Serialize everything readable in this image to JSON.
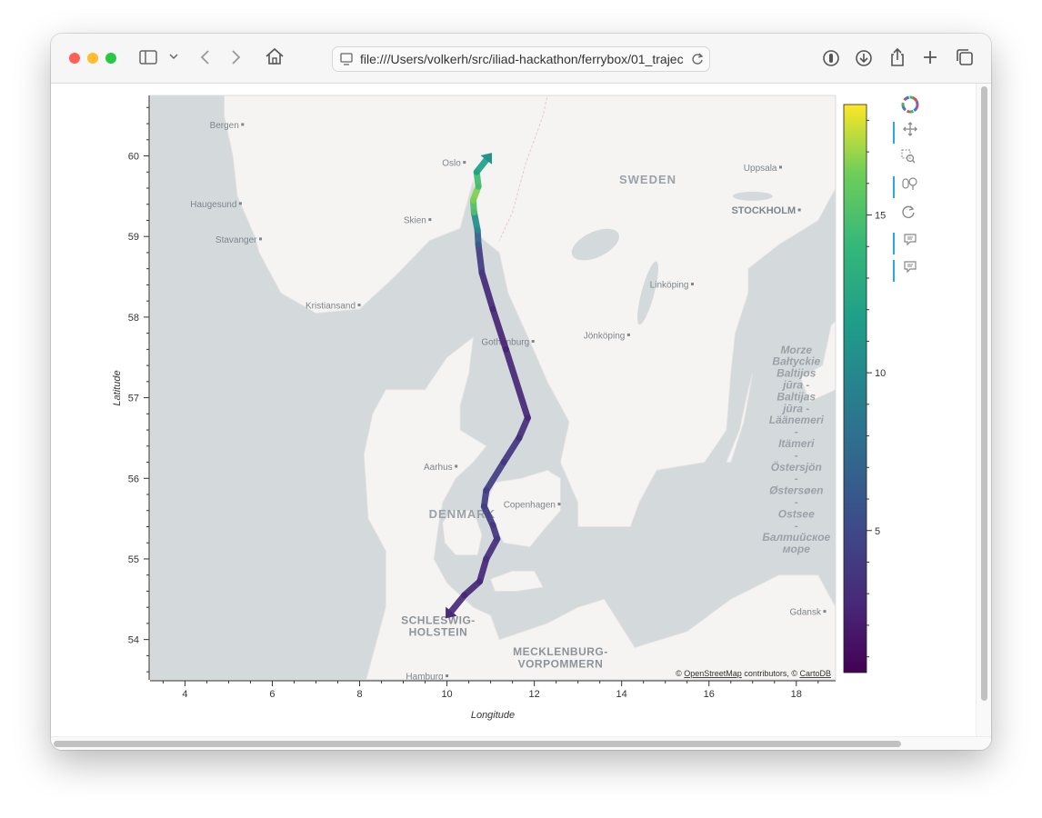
{
  "browser": {
    "url": "file:///Users/volkerh/src/iliad-hackathon/ferrybox/01_trajec",
    "colors": {
      "close": "#fe5f57",
      "minimize": "#febc2e",
      "zoom": "#28c840"
    }
  },
  "map": {
    "attribution_prefix": "© ",
    "attribution_osm": "OpenStreetMap",
    "attribution_mid": " contributors, © ",
    "attribution_carto": "CartoDB",
    "places": [
      {
        "name": "Bergen",
        "lon": 5.32,
        "lat": 60.39,
        "type": "city"
      },
      {
        "name": "Haugesund",
        "lon": 5.27,
        "lat": 59.41,
        "type": "city"
      },
      {
        "name": "Stavanger",
        "lon": 5.73,
        "lat": 58.97,
        "type": "city"
      },
      {
        "name": "Kristiansand",
        "lon": 7.99,
        "lat": 58.15,
        "type": "city"
      },
      {
        "name": "Skien",
        "lon": 9.61,
        "lat": 59.21,
        "type": "city"
      },
      {
        "name": "Oslo",
        "lon": 10.4,
        "lat": 59.92,
        "type": "city"
      },
      {
        "name": "Gothenburg",
        "lon": 11.97,
        "lat": 57.7,
        "type": "city"
      },
      {
        "name": "Jönköping",
        "lon": 14.16,
        "lat": 57.78,
        "type": "city"
      },
      {
        "name": "Linköping",
        "lon": 15.62,
        "lat": 58.41,
        "type": "city"
      },
      {
        "name": "Uppsala",
        "lon": 17.64,
        "lat": 59.86,
        "type": "city"
      },
      {
        "name": "Aarhus",
        "lon": 10.21,
        "lat": 56.15,
        "type": "city"
      },
      {
        "name": "Copenhagen",
        "lon": 12.57,
        "lat": 55.68,
        "type": "city"
      },
      {
        "name": "Gdansk",
        "lon": 18.65,
        "lat": 54.35,
        "type": "city"
      },
      {
        "name": "Hamburg",
        "lon": 10.0,
        "lat": 53.55,
        "type": "city"
      },
      {
        "name": "STOCKHOLM",
        "lon": 18.07,
        "lat": 59.33,
        "type": "capital"
      },
      {
        "name": "SWEDEN",
        "lon": 14.6,
        "lat": 59.7,
        "type": "country"
      },
      {
        "name": "DENMARK",
        "lon": 10.35,
        "lat": 55.55,
        "type": "country"
      },
      {
        "name": "SCHLESWIG-",
        "lon": 9.8,
        "lat": 54.24,
        "type": "region"
      },
      {
        "name": "HOLSTEIN",
        "lon": 9.8,
        "lat": 54.09,
        "type": "region"
      },
      {
        "name": "MECKLENBURG-",
        "lon": 12.6,
        "lat": 53.85,
        "type": "region"
      },
      {
        "name": "VORPOMMERN",
        "lon": 12.6,
        "lat": 53.7,
        "type": "region"
      }
    ],
    "sea_labels": [
      "Morze",
      "Bałtyckie",
      "Baltijos",
      "jūra -",
      "Baltijas",
      "jūra -",
      "Läänemeri",
      "-",
      "Itämeri",
      "-",
      "Östersjön",
      "-",
      "Østersøen",
      "-",
      "Ostsee",
      "-",
      "Балтийское",
      "море"
    ]
  },
  "chart_data": {
    "type": "line",
    "title": "",
    "xlabel": "Longitude",
    "ylabel": "Latitude",
    "xlim": [
      3.2,
      18.9
    ],
    "ylim": [
      53.5,
      60.75
    ],
    "xticks": [
      4,
      6,
      8,
      10,
      12,
      14,
      16,
      18
    ],
    "yticks": [
      54,
      55,
      56,
      57,
      58,
      59,
      60
    ],
    "colorbar": {
      "colormap": "viridis",
      "range": [
        0.5,
        18.5
      ],
      "ticks": [
        5,
        10,
        15
      ]
    },
    "series": [
      {
        "values": [
          {
            "lon": 10.1,
            "lat": 54.35,
            "c": 3.0
          },
          {
            "lon": 10.4,
            "lat": 54.55,
            "c": 3.0
          },
          {
            "lon": 10.75,
            "lat": 54.72,
            "c": 2.5
          },
          {
            "lon": 10.9,
            "lat": 55.0,
            "c": 3.0
          },
          {
            "lon": 11.15,
            "lat": 55.25,
            "c": 3.5
          },
          {
            "lon": 11.05,
            "lat": 55.42,
            "c": 4.0
          },
          {
            "lon": 10.85,
            "lat": 55.65,
            "c": 4.0
          },
          {
            "lon": 10.9,
            "lat": 55.85,
            "c": 4.5
          },
          {
            "lon": 11.3,
            "lat": 56.2,
            "c": 4.0
          },
          {
            "lon": 11.65,
            "lat": 56.5,
            "c": 3.5
          },
          {
            "lon": 11.85,
            "lat": 56.75,
            "c": 3.0
          },
          {
            "lon": 11.35,
            "lat": 57.6,
            "c": 2.5
          },
          {
            "lon": 11.05,
            "lat": 58.1,
            "c": 2.5
          },
          {
            "lon": 10.8,
            "lat": 58.55,
            "c": 3.0
          },
          {
            "lon": 10.72,
            "lat": 58.9,
            "c": 5.0
          },
          {
            "lon": 10.7,
            "lat": 59.08,
            "c": 8.0
          },
          {
            "lon": 10.62,
            "lat": 59.3,
            "c": 13.0
          },
          {
            "lon": 10.6,
            "lat": 59.45,
            "c": 17.0
          },
          {
            "lon": 10.72,
            "lat": 59.62,
            "c": 16.0
          },
          {
            "lon": 10.68,
            "lat": 59.8,
            "c": 13.0
          },
          {
            "lon": 10.9,
            "lat": 59.95,
            "c": 11.0
          }
        ]
      }
    ]
  }
}
